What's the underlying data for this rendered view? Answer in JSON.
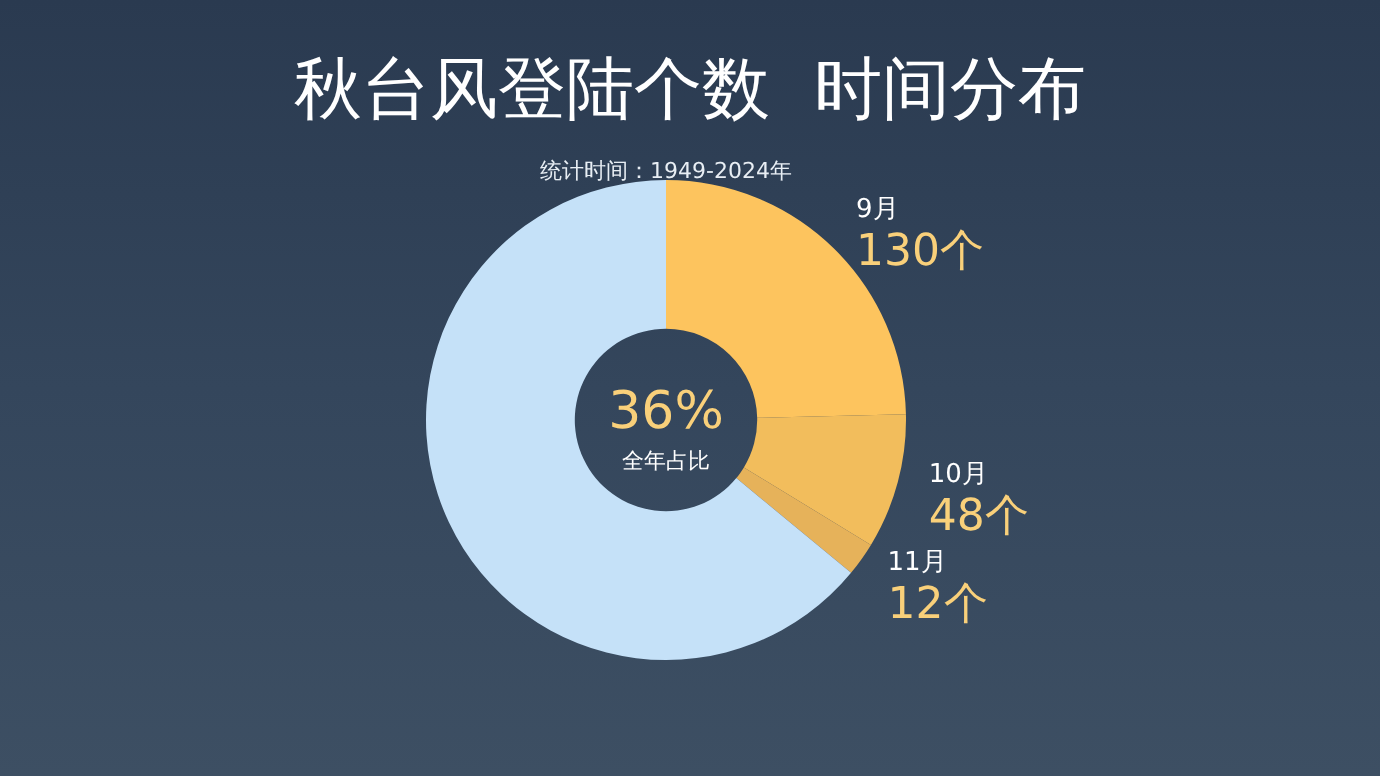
{
  "chart_data": {
    "type": "donut",
    "title": "秋台风登陆个数  时间分布",
    "subtitle": "统计时间：1949-2024年",
    "categories": [
      "9月",
      "10月",
      "11月",
      null
    ],
    "values": [
      130,
      48,
      12,
      338
    ],
    "value_labels": [
      "130个",
      "48个",
      "12个",
      null
    ],
    "colors": [
      "#fdc45e",
      "#f2bd5c",
      "#e6b25a",
      "#c5e1f8"
    ],
    "annotations": [
      "36%",
      "全年占比"
    ],
    "legend": false
  }
}
